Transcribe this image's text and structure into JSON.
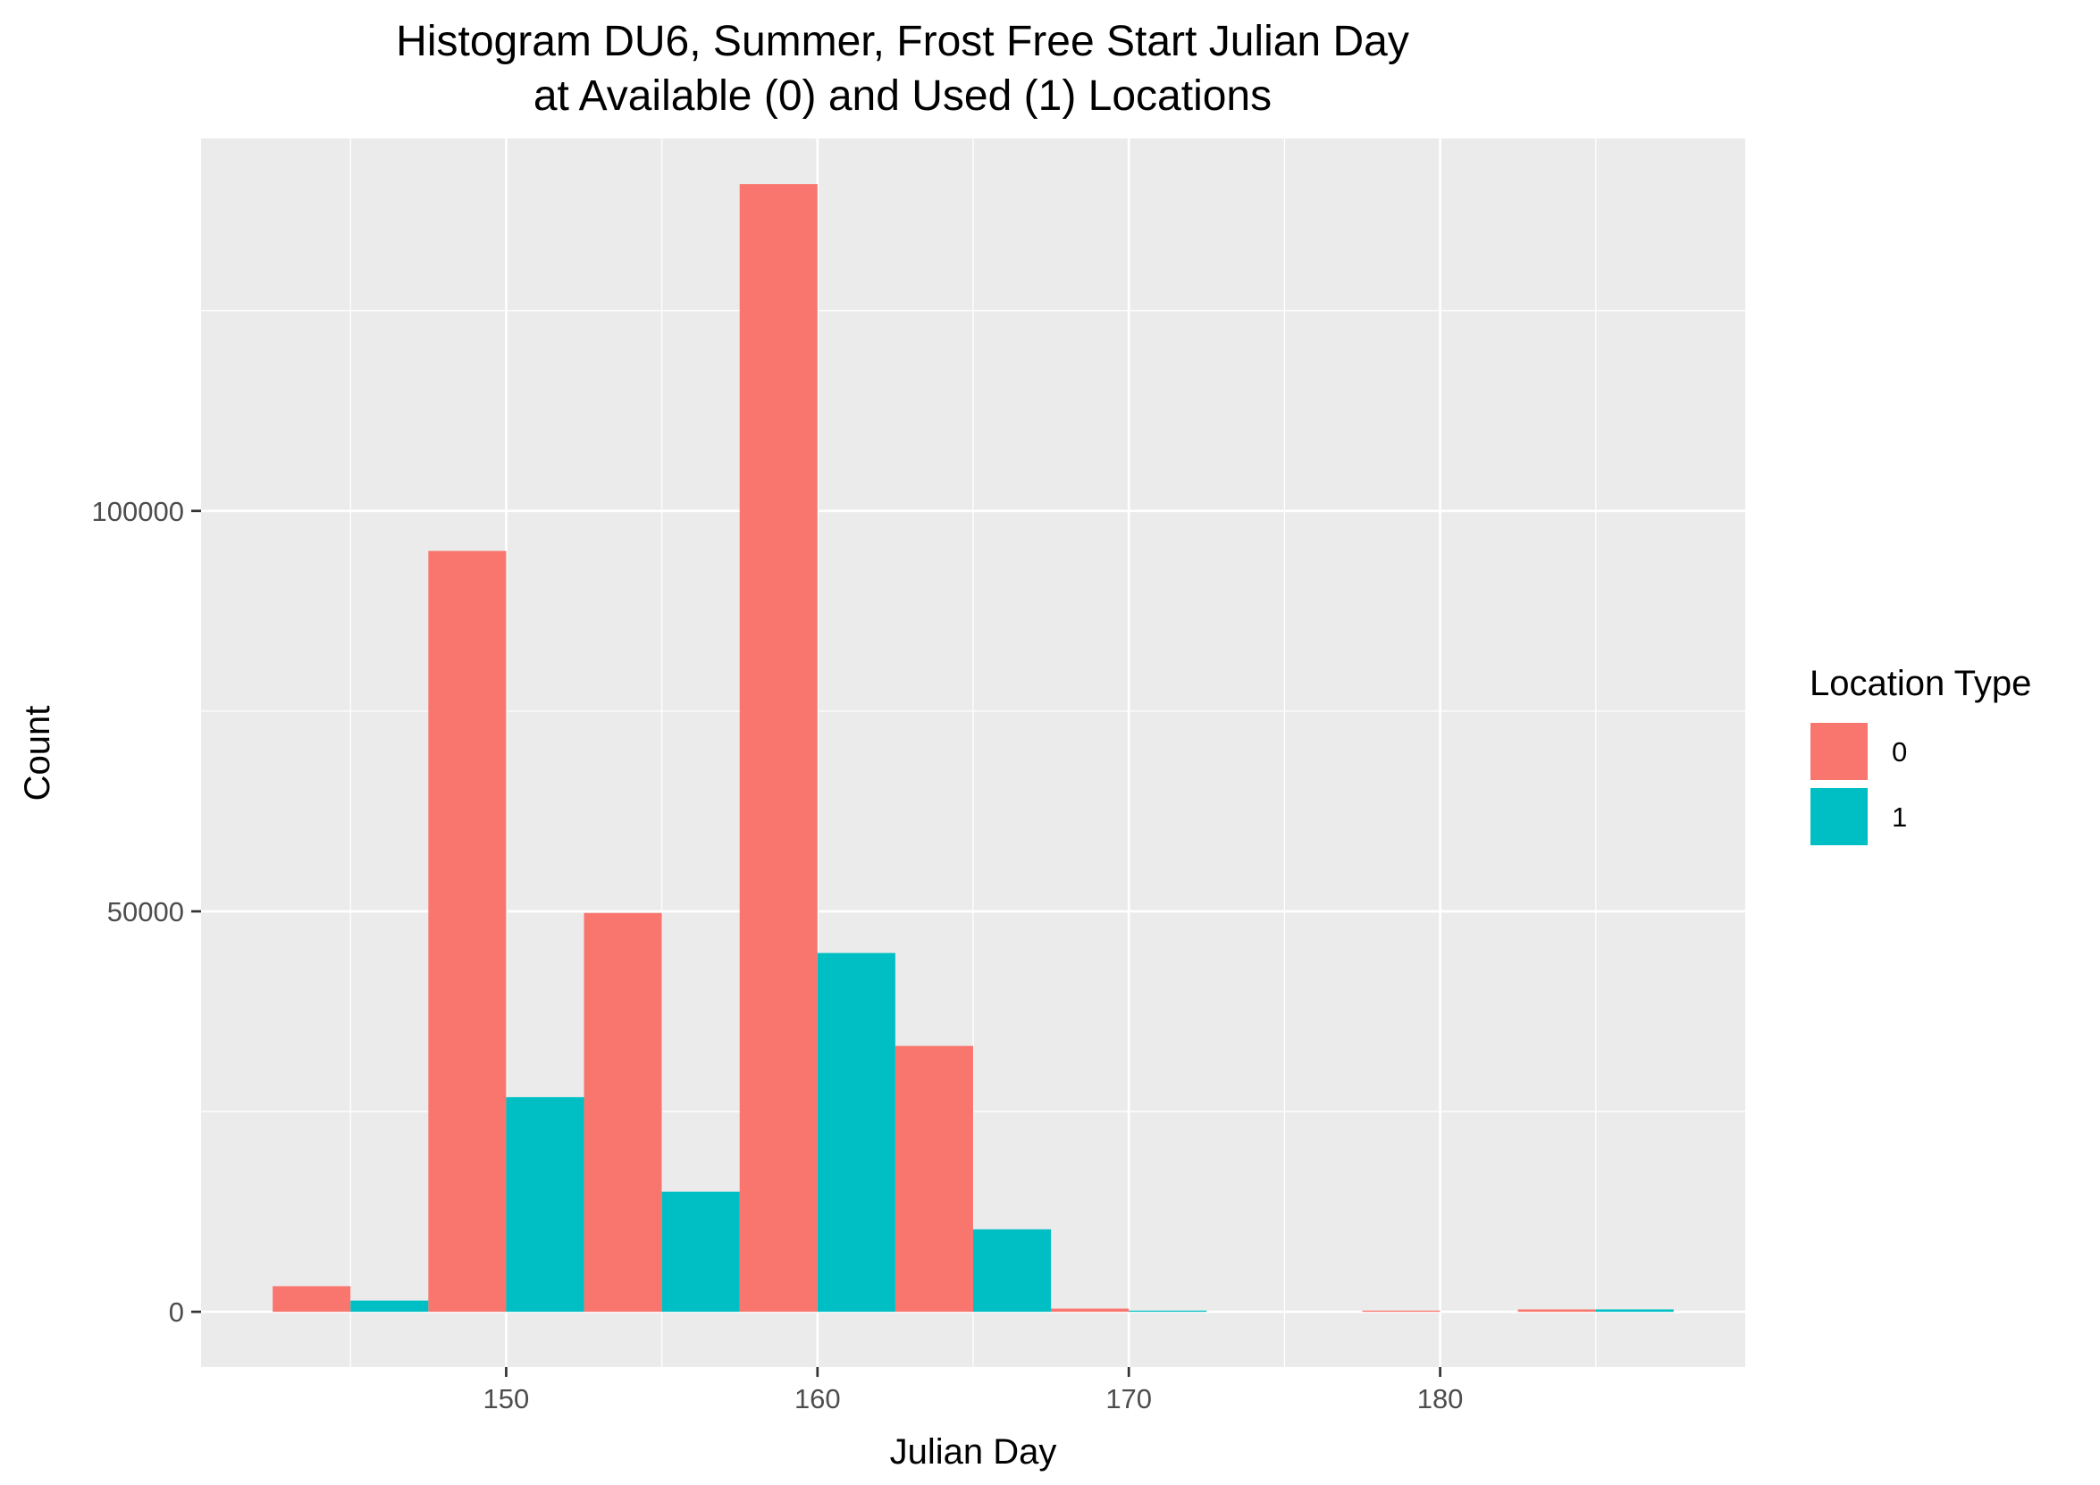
{
  "chart_data": {
    "type": "bar",
    "title": "Histogram DU6, Summer, Frost Free Start Julian Day",
    "subtitle": "at Available (0) and Used (1) Locations",
    "xlabel": "Julian Day",
    "ylabel": "Count",
    "bin_width": 5,
    "bin_centers": [
      145,
      150,
      155,
      160,
      165,
      170,
      175,
      180,
      185
    ],
    "xlim": [
      140.2,
      189.8
    ],
    "ylim": [
      -6900,
      146500
    ],
    "x_ticks": [
      150,
      160,
      170,
      180
    ],
    "y_ticks": [
      0,
      50000,
      100000
    ],
    "grid": true,
    "legend": {
      "title": "Location Type",
      "position": "right"
    },
    "series": [
      {
        "name": "0",
        "color": "#F8766D",
        "values": [
          3200,
          95000,
          49800,
          140800,
          33200,
          400,
          0,
          150,
          300
        ]
      },
      {
        "name": "1",
        "color": "#00BFC4",
        "values": [
          1400,
          26800,
          15000,
          44800,
          10300,
          150,
          0,
          0,
          300
        ]
      }
    ]
  },
  "colors": {
    "panel_background": "#EBEBEB",
    "grid_major": "#FFFFFF",
    "axis_text": "#4D4D4D"
  }
}
